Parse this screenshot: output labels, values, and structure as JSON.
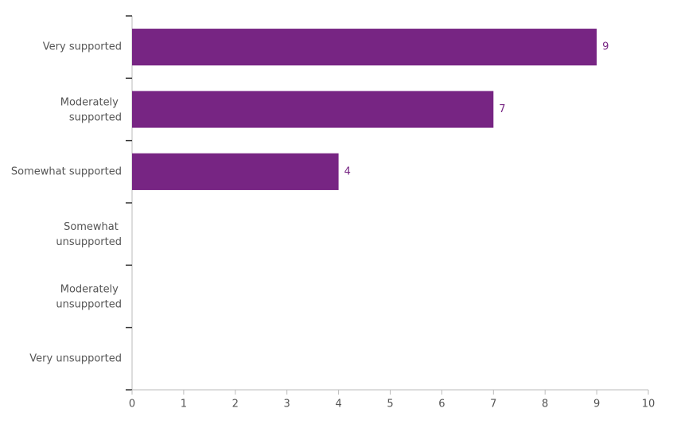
{
  "chart_data": {
    "type": "bar",
    "orientation": "horizontal",
    "categories": [
      "Very supported",
      "Moderately supported",
      "Somewhat supported",
      "Somewhat unsupported",
      "Moderately unsupported",
      "Very unsupported"
    ],
    "values": [
      9,
      7,
      4,
      0,
      0,
      0
    ],
    "color": "#772583",
    "xlim": [
      0,
      10
    ],
    "xticks": [
      0,
      1,
      2,
      3,
      4,
      5,
      6,
      7,
      8,
      9,
      10
    ],
    "grid": false
  }
}
